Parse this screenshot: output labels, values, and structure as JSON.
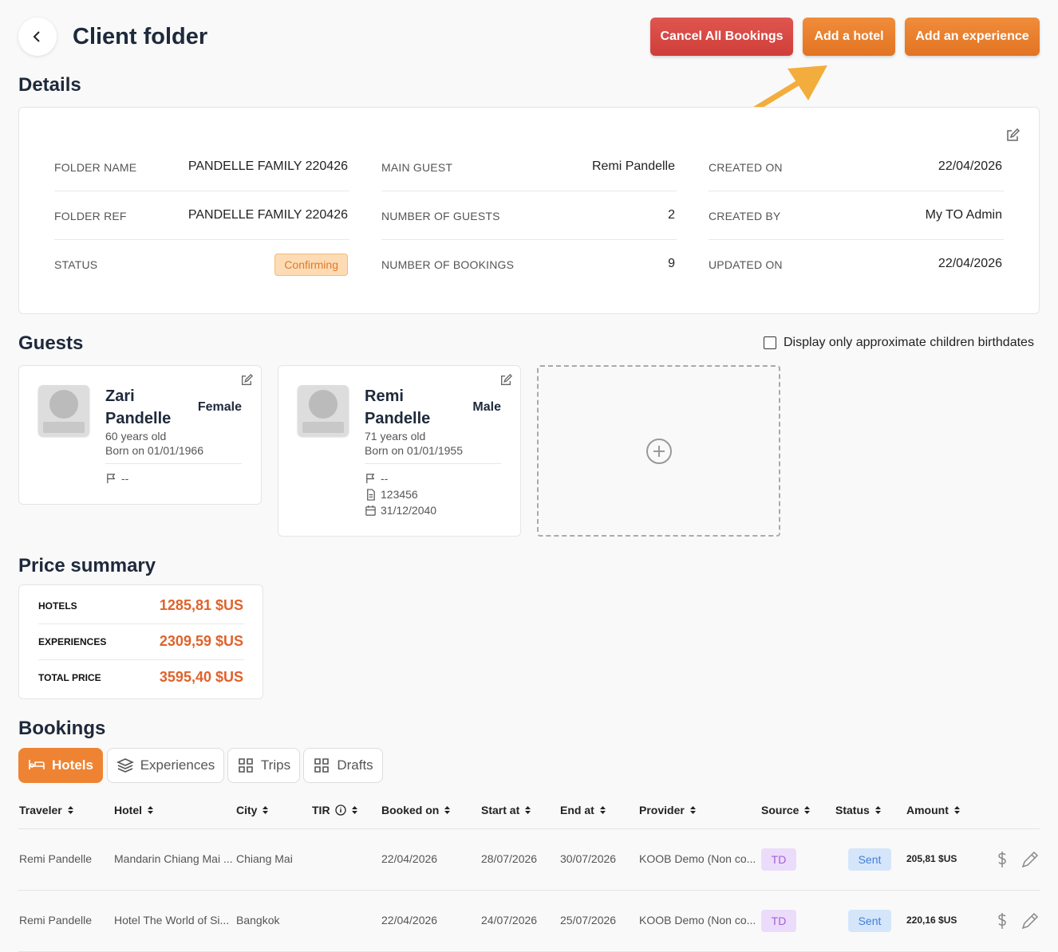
{
  "header": {
    "title": "Client folder",
    "actions": [
      "Cancel All Bookings",
      "Add a hotel",
      "Add an experience"
    ]
  },
  "details": {
    "title": "Details",
    "columns": [
      [
        {
          "label": "FOLDER NAME",
          "value": "PANDELLE FAMILY 220426"
        },
        {
          "label": "FOLDER REF",
          "value": "PANDELLE FAMILY 220426"
        },
        {
          "label": "STATUS",
          "value": "Confirming"
        }
      ],
      [
        {
          "label": "MAIN GUEST",
          "value": "Remi Pandelle"
        },
        {
          "label": "NUMBER OF GUESTS",
          "value": 2
        },
        {
          "label": "NUMBER OF BOOKINGS",
          "value": 9
        }
      ],
      [
        {
          "label": "CREATED ON",
          "value": "22/04/2026"
        },
        {
          "label": "CREATED BY",
          "value": "My TO Admin"
        },
        {
          "label": "UPDATED ON",
          "value": "22/04/2026"
        }
      ]
    ]
  },
  "guests": {
    "title": "Guests",
    "filter": "Display only approximate children birthdates",
    "cards": [
      {
        "first_name": "Zari",
        "last_name": "Pandelle",
        "gender": "Female",
        "age": "60 years old",
        "born": "Born on 01/01/1966",
        "nationality": "--"
      },
      {
        "first_name": "Remi",
        "last_name": "Pandelle",
        "gender": "Male",
        "age": "71 years old",
        "born": "Born on 01/01/1955",
        "nationality": "--",
        "document": "123456",
        "expiry": "31/12/2040"
      }
    ]
  },
  "price_summary": {
    "title": "Price summary",
    "rows": [
      {
        "label": "HOTELS",
        "value": "1285,81 $US"
      },
      {
        "label": "EXPERIENCES",
        "value": "2309,59 $US"
      },
      {
        "label": "TOTAL PRICE",
        "value": "3595,40 $US"
      }
    ]
  },
  "bookings": {
    "title": "Bookings",
    "tabs": [
      "Hotels",
      "Experiences",
      "Trips",
      "Drafts"
    ],
    "columns": [
      "Traveler",
      "Hotel",
      "City",
      "TIR",
      "Booked on",
      "Start at",
      "End at",
      "Provider",
      "Source",
      "Status",
      "Amount"
    ],
    "rows": [
      {
        "traveler": "Remi Pandelle",
        "hotel": "Mandarin Chiang Mai ...",
        "city": "Chiang Mai",
        "booked_on": "22/04/2026",
        "start_at": "28/07/2026",
        "end_at": "30/07/2026",
        "provider": "KOOB Demo (Non co...",
        "source": "TD",
        "status": "Sent",
        "amount": "205,81 $US"
      },
      {
        "traveler": "Remi Pandelle",
        "hotel": "Hotel The World of Si...",
        "city": "Bangkok",
        "booked_on": "22/04/2026",
        "start_at": "24/07/2026",
        "end_at": "25/07/2026",
        "provider": "KOOB Demo (Non co...",
        "source": "TD",
        "status": "Sent",
        "amount": "220,16 $US"
      }
    ]
  }
}
